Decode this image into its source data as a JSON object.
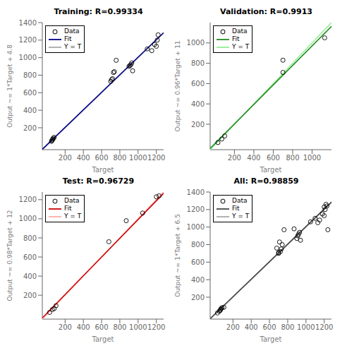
{
  "chart_data": [
    {
      "type": "scatter",
      "title": "Training: R=0.99334",
      "x_label": "Target",
      "y_label": "Output ~= 1*Target + 4.8",
      "xlim": [
        -50,
        1280
      ],
      "ylim": [
        -50,
        1400
      ],
      "xticks": [
        200,
        400,
        600,
        800,
        1000,
        1200
      ],
      "yticks": [
        200,
        400,
        600,
        800,
        1000,
        1200,
        1400
      ],
      "grid": false,
      "legend": "upper left",
      "series": [
        {
          "name": "Data",
          "type": "scatter",
          "marker": "circle",
          "color": "#000000",
          "x": [
            50,
            55,
            60,
            65,
            70,
            80,
            700,
            710,
            720,
            730,
            740,
            760,
            900,
            910,
            920,
            930,
            940,
            1100,
            1150,
            1180,
            1200,
            1210,
            1220
          ],
          "values": [
            45,
            55,
            60,
            70,
            80,
            90,
            730,
            750,
            760,
            830,
            840,
            970,
            900,
            910,
            920,
            940,
            850,
            1100,
            1080,
            1150,
            1130,
            1200,
            1260
          ]
        },
        {
          "name": "Fit",
          "type": "line",
          "line_style": "solid",
          "color": "#00008B",
          "x": [
            -50,
            1280
          ],
          "values": [
            -45.2,
            1284.8
          ]
        },
        {
          "name": "Y = T",
          "type": "line",
          "line_style": "solid",
          "color": "#aaaaaa",
          "x": [
            -50,
            1280
          ],
          "values": [
            -50,
            1280
          ]
        }
      ]
    },
    {
      "type": "scatter",
      "title": "Validation: R=0.9913",
      "x_label": "Target",
      "y_label": "Output ~= 0.96*Target + 11",
      "xlim": [
        -50,
        1200
      ],
      "ylim": [
        -50,
        1200
      ],
      "xticks": [
        200,
        400,
        600,
        800,
        1000
      ],
      "yticks": [
        200,
        400,
        600,
        800,
        1000
      ],
      "grid": false,
      "legend": "upper left",
      "series": [
        {
          "name": "Data",
          "type": "scatter",
          "marker": "circle",
          "color": "#000000",
          "x": [
            30,
            70,
            100,
            700,
            700,
            1130
          ],
          "values": [
            20,
            55,
            85,
            710,
            830,
            1050
          ]
        },
        {
          "name": "Fit",
          "type": "line",
          "line_style": "solid",
          "color": "#228B22",
          "x": [
            -50,
            1200
          ],
          "values": [
            -37,
            1163
          ]
        },
        {
          "name": "Y = T",
          "type": "line",
          "line_style": "solid",
          "color": "#90EE90",
          "x": [
            -50,
            1200
          ],
          "values": [
            -50,
            1200
          ]
        }
      ]
    },
    {
      "type": "scatter",
      "title": "Test: R=0.96729",
      "x_label": "Target",
      "y_label": "Output ~= 0.98*Target + 12",
      "xlim": [
        -50,
        1280
      ],
      "ylim": [
        -50,
        1280
      ],
      "xticks": [
        200,
        400,
        600,
        800,
        1000,
        1200
      ],
      "yticks": [
        200,
        400,
        600,
        800,
        1000,
        1200
      ],
      "grid": false,
      "legend": "upper left",
      "series": [
        {
          "name": "Data",
          "type": "scatter",
          "marker": "circle",
          "color": "#000000",
          "x": [
            30,
            60,
            80,
            100,
            680,
            870,
            1050,
            1200,
            1230
          ],
          "values": [
            20,
            50,
            60,
            90,
            760,
            980,
            1060,
            1230,
            1240
          ]
        },
        {
          "name": "Fit",
          "type": "line",
          "line_style": "solid",
          "color": "#CC0000",
          "x": [
            -50,
            1280
          ],
          "values": [
            -37,
            1266.4
          ]
        },
        {
          "name": "Y = T",
          "type": "line",
          "line_style": "solid",
          "color": "#FFAAAA",
          "x": [
            -50,
            1280
          ],
          "values": [
            -50,
            1280
          ]
        }
      ]
    },
    {
      "type": "scatter",
      "title": "All: R=0.98859",
      "x_label": "Target",
      "y_label": "Output ~= 1*Target + 6.5",
      "xlim": [
        -50,
        1280
      ],
      "ylim": [
        -50,
        1400
      ],
      "xticks": [
        200,
        400,
        600,
        800,
        1000,
        1200
      ],
      "yticks": [
        200,
        400,
        600,
        800,
        1000,
        1200,
        1400
      ],
      "grid": false,
      "legend": "upper left",
      "series": [
        {
          "name": "Data",
          "type": "scatter",
          "marker": "circle",
          "color": "#000000",
          "x": [
            30,
            50,
            60,
            65,
            70,
            80,
            100,
            680,
            700,
            700,
            710,
            720,
            730,
            740,
            760,
            870,
            900,
            910,
            920,
            930,
            940,
            1050,
            1100,
            1130,
            1150,
            1180,
            1200,
            1200,
            1210,
            1220,
            1230,
            1240
          ],
          "values": [
            20,
            40,
            50,
            60,
            70,
            80,
            85,
            760,
            700,
            710,
            830,
            720,
            750,
            800,
            970,
            980,
            870,
            900,
            920,
            940,
            850,
            1060,
            1100,
            1050,
            1080,
            1150,
            1130,
            1230,
            1200,
            1260,
            1240,
            970
          ]
        },
        {
          "name": "Fit",
          "type": "line",
          "line_style": "solid",
          "color": "#444444",
          "x": [
            -50,
            1280
          ],
          "values": [
            -43.5,
            1286.5
          ]
        },
        {
          "name": "Y = T",
          "type": "line",
          "line_style": "solid",
          "color": "#aaaaaa",
          "x": [
            -50,
            1280
          ],
          "values": [
            -50,
            1280
          ]
        }
      ]
    }
  ]
}
